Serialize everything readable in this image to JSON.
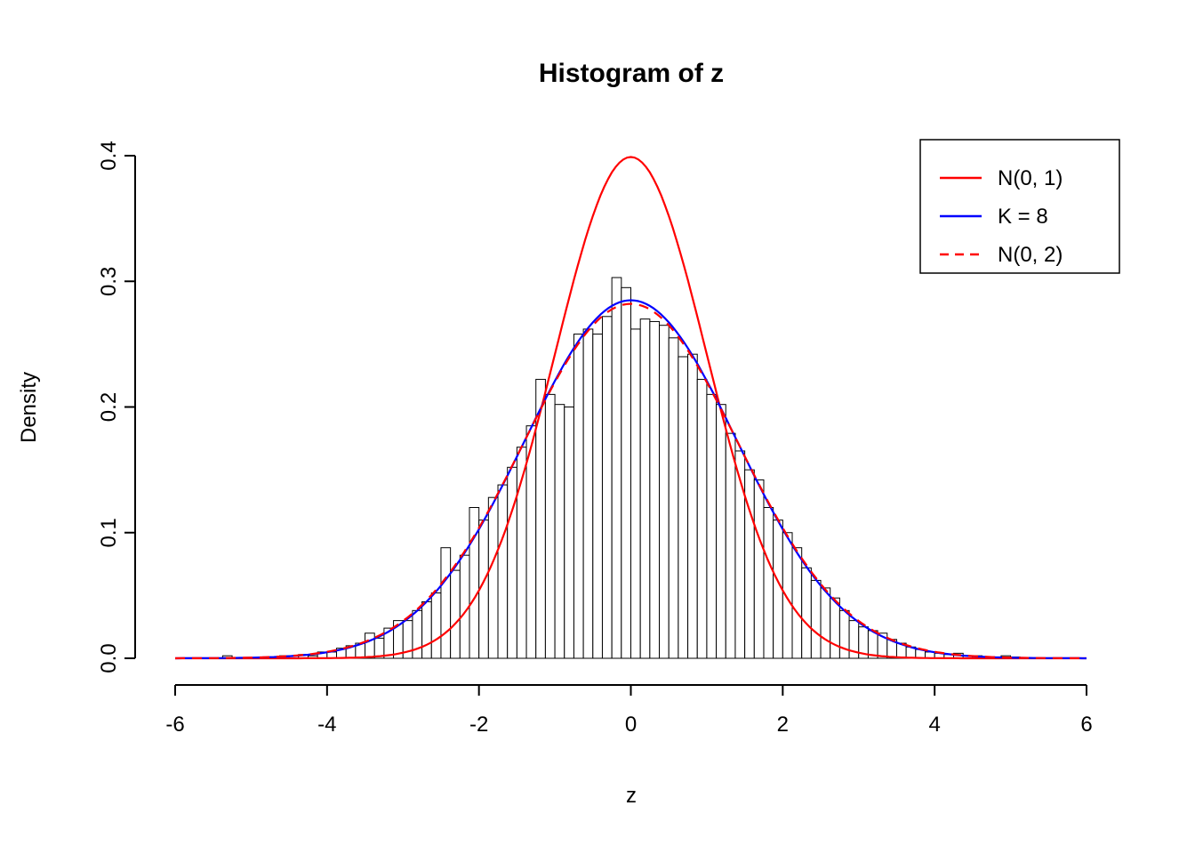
{
  "chart_data": {
    "type": "bar",
    "subtype": "histogram-with-density-curves",
    "title": "Histogram of z",
    "xlabel": "z",
    "ylabel": "Density",
    "xlim": [
      -6,
      6
    ],
    "ylim": [
      0,
      0.4
    ],
    "x_ticks": [
      -6,
      -4,
      -2,
      0,
      2,
      4,
      6
    ],
    "x_tick_labels": [
      "-6",
      "-4",
      "-2",
      "0",
      "2",
      "4",
      "6"
    ],
    "y_ticks": [
      0,
      0.1,
      0.2,
      0.3,
      0.4
    ],
    "y_tick_labels": [
      "0.0",
      "0.1",
      "0.2",
      "0.3",
      "0.4"
    ],
    "grid": false,
    "legend_position": "topright",
    "histogram": {
      "breaks_start": -5.375,
      "bin_width": 0.125,
      "bar_fill": "#FFFFFF",
      "bar_stroke": "#000000",
      "densities": [
        0.002,
        0,
        0,
        0,
        0,
        0.001,
        0.002,
        0.002,
        0.003,
        0.002,
        0.005,
        0.005,
        0.008,
        0.01,
        0.012,
        0.02,
        0.016,
        0.024,
        0.03,
        0.03,
        0.038,
        0.045,
        0.052,
        0.088,
        0.07,
        0.082,
        0.12,
        0.11,
        0.128,
        0.138,
        0.152,
        0.168,
        0.185,
        0.222,
        0.21,
        0.202,
        0.2,
        0.258,
        0.262,
        0.258,
        0.272,
        0.303,
        0.295,
        0.262,
        0.27,
        0.268,
        0.265,
        0.255,
        0.24,
        0.242,
        0.222,
        0.21,
        0.202,
        0.179,
        0.165,
        0.15,
        0.142,
        0.12,
        0.11,
        0.1,
        0.088,
        0.072,
        0.062,
        0.056,
        0.048,
        0.038,
        0.03,
        0.025,
        0.022,
        0.02,
        0.015,
        0.012,
        0.009,
        0.007,
        0.005,
        0.004,
        0.003,
        0.004,
        0.002,
        0.002,
        0.001,
        0,
        0.002,
        0.001
      ]
    },
    "curves": [
      {
        "label": "N(0, 1)",
        "color": "#FF0000",
        "style": "solid",
        "mean": 0,
        "sd": 1.0,
        "peak_density": 0.399
      },
      {
        "label": "K = 8",
        "color": "#0000FF",
        "style": "solid",
        "mean": 0,
        "sd": 1.4,
        "peak_density": 0.285
      },
      {
        "label": "N(0, 2)",
        "color": "#FF0000",
        "style": "dashed",
        "mean": 0,
        "sd": 1.4142,
        "peak_density": 0.282
      }
    ]
  }
}
